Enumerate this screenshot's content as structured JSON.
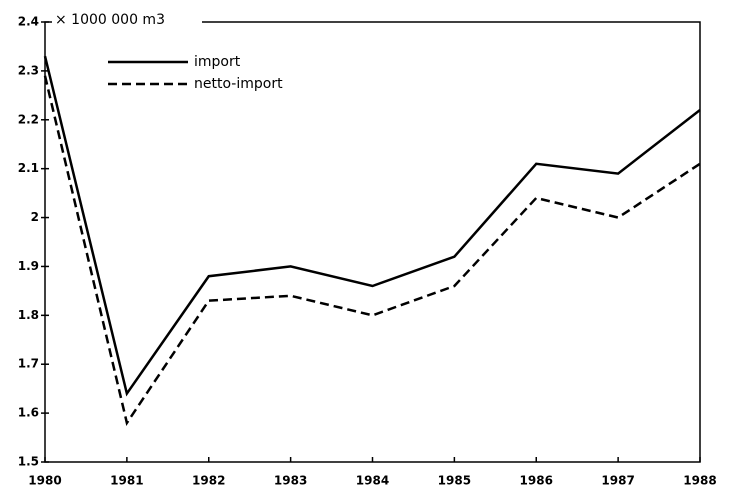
{
  "chart_data": {
    "type": "line",
    "title": "× 1000 000 m3",
    "x": [
      1980,
      1981,
      1982,
      1983,
      1984,
      1985,
      1986,
      1987,
      1988
    ],
    "xlim": [
      1980,
      1988
    ],
    "xticks": [
      1980,
      1981,
      1982,
      1983,
      1984,
      1985,
      1986,
      1987,
      1988
    ],
    "ylim": [
      1.5,
      2.4
    ],
    "yticks": [
      1.5,
      1.6,
      1.7,
      1.8,
      1.9,
      2,
      2.1,
      2.2,
      2.3,
      2.4
    ],
    "grid": false,
    "legend": "upper left",
    "series": [
      {
        "name": "import",
        "color": "#000000",
        "dash": "solid",
        "values": [
          2.33,
          1.64,
          1.88,
          1.9,
          1.86,
          1.92,
          2.11,
          2.09,
          2.22
        ]
      },
      {
        "name": "netto-import",
        "color": "#000000",
        "dash": "dashed",
        "values": [
          2.29,
          1.58,
          1.83,
          1.84,
          1.8,
          1.86,
          2.04,
          2.0,
          2.11
        ]
      }
    ]
  }
}
